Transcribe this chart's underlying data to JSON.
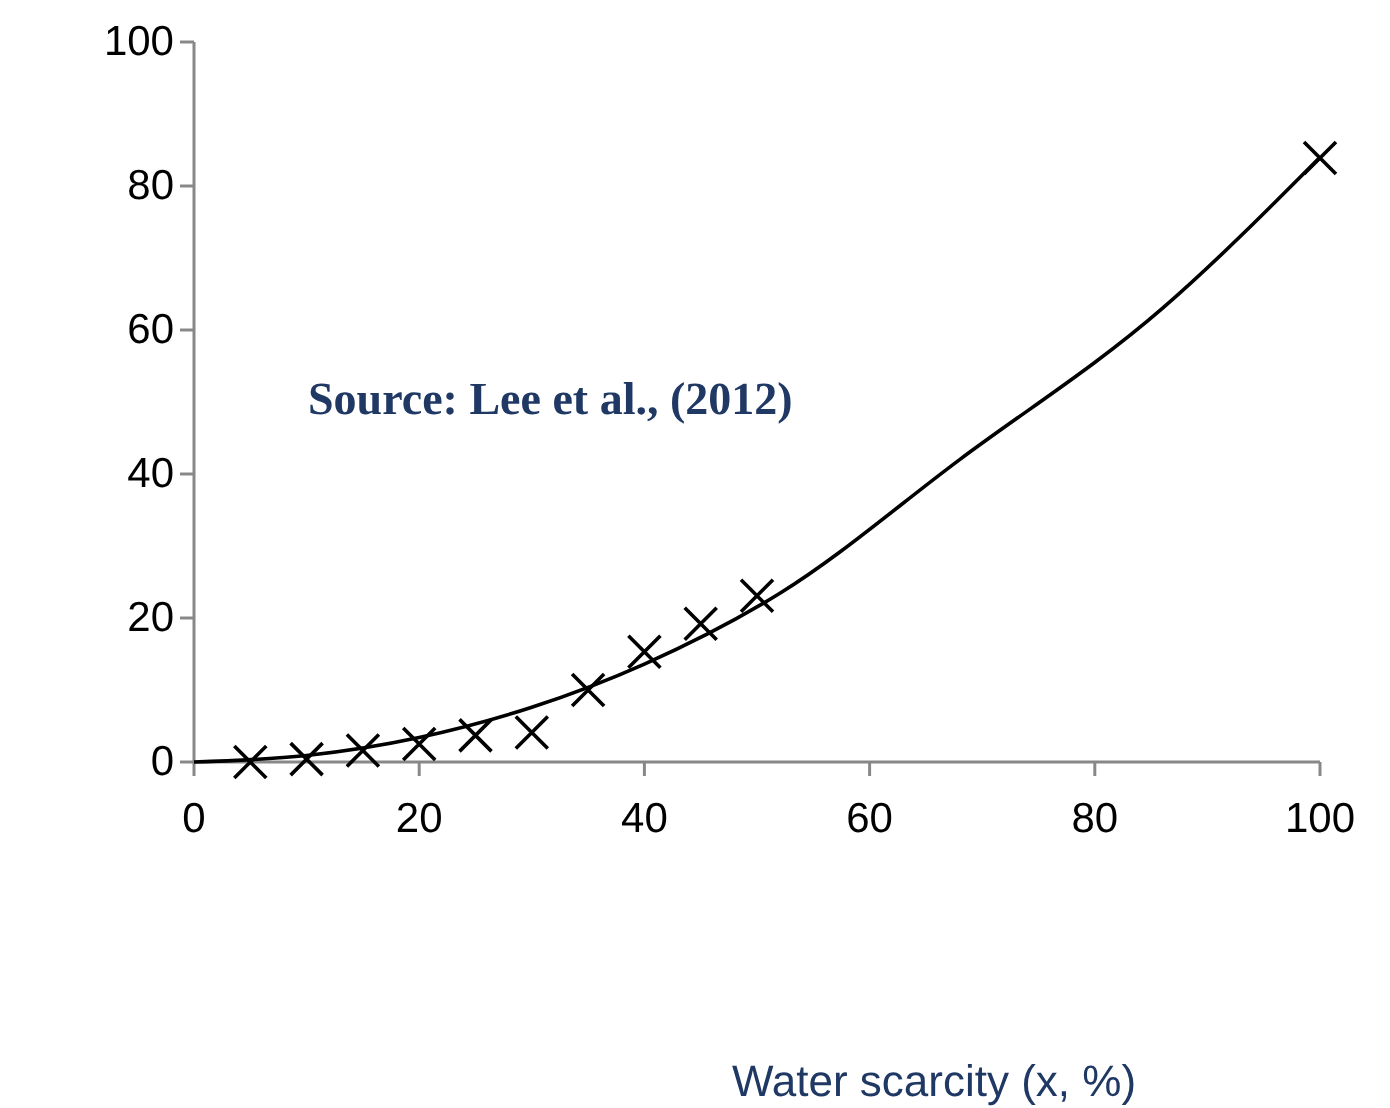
{
  "chart_data": {
    "type": "scatter",
    "xlabel": "Water scarcity (x, %)",
    "annotations": [
      "Source: Lee et al., (2012)"
    ],
    "xlim": [
      0,
      100
    ],
    "xticks": [
      0,
      20,
      40,
      60,
      80,
      100
    ],
    "ylim": [
      0,
      100
    ],
    "yticks": [
      0,
      20,
      40,
      60,
      80,
      100
    ],
    "grid": false,
    "marker": "cross",
    "series": [
      {
        "color": "#000000",
        "x": [
          5,
          10,
          15,
          20,
          25,
          30,
          35,
          40,
          45,
          50,
          100
        ],
        "values": [
          0,
          0.4,
          1.6,
          2.5,
          3.7,
          4.1,
          10,
          15.3,
          19.2,
          23.1,
          83.9
        ]
      },
      {
        "type": "line",
        "color": "#000000",
        "marker": "none",
        "line_style": "solid",
        "x": [
          0,
          10,
          20,
          30,
          40,
          52,
          68,
          86,
          100
        ],
        "values": [
          0,
          0.9,
          3.4,
          7.6,
          13.6,
          23.4,
          42,
          63,
          84
        ]
      }
    ]
  }
}
